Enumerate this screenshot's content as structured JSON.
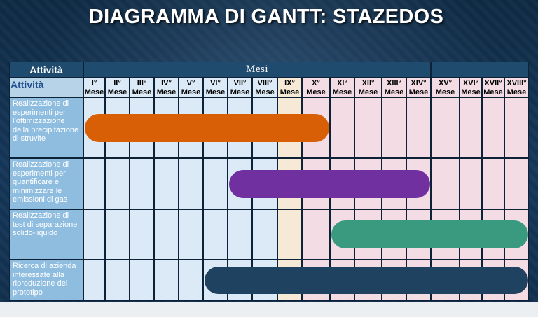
{
  "title": "DIAGRAMMA DI GANTT: STAZEDOS",
  "header": {
    "activity": "Attività",
    "months_label": "Mesi",
    "sub_activity": "Attività"
  },
  "months": [
    {
      "num": "I°",
      "word": "Mese"
    },
    {
      "num": "II°",
      "word": "Mese"
    },
    {
      "num": "III°",
      "word": "Mese"
    },
    {
      "num": "IV°",
      "word": "Mese"
    },
    {
      "num": "V°",
      "word": "Mese"
    },
    {
      "num": "VI°",
      "word": "Mese"
    },
    {
      "num": "VII°",
      "word": "Mese"
    },
    {
      "num": "VIII°",
      "word": "Mese"
    },
    {
      "num": "IX°",
      "word": "Mese"
    },
    {
      "num": "X°",
      "word": "Mese"
    },
    {
      "num": "XI°",
      "word": "Mese"
    },
    {
      "num": "XII°",
      "word": "Mese"
    },
    {
      "num": "XIII°",
      "word": "Mese"
    },
    {
      "num": "XIV°",
      "word": "Mese"
    },
    {
      "num": "XV°",
      "word": "Mese"
    },
    {
      "num": "XVI°",
      "word": "Mese"
    },
    {
      "num": "XVII°",
      "word": "Mese"
    },
    {
      "num": "XVIII°",
      "word": "Mese"
    }
  ],
  "chart_data": {
    "type": "gantt",
    "title": "DIAGRAMMA DI GANTT: STAZEDOS",
    "months_total": 18,
    "column_colors": {
      "months_1_8": "#dbeaf6",
      "month_9": "#f6ead6",
      "months_10_18": "#f4dce4"
    },
    "tasks": [
      {
        "name": "Realizzazione di esperimenti per l’ottimizzazione della precipitazione di struvite",
        "start_month": 1,
        "end_month": 10,
        "color": "#d95f07"
      },
      {
        "name": "Realizzazione di esperimenti per quantificare e minimizzare le emissioni di gas",
        "start_month": 7,
        "end_month": 14,
        "color": "#7030a0"
      },
      {
        "name": "Realizzazione di test di separazione solido-liquido",
        "start_month": 11,
        "end_month": 18,
        "color": "#3a9a80"
      },
      {
        "name": "Ricerca di azienda interessate alla riproduzione del prototipo",
        "start_month": 6,
        "end_month": 18,
        "color": "#1f4261"
      }
    ]
  }
}
